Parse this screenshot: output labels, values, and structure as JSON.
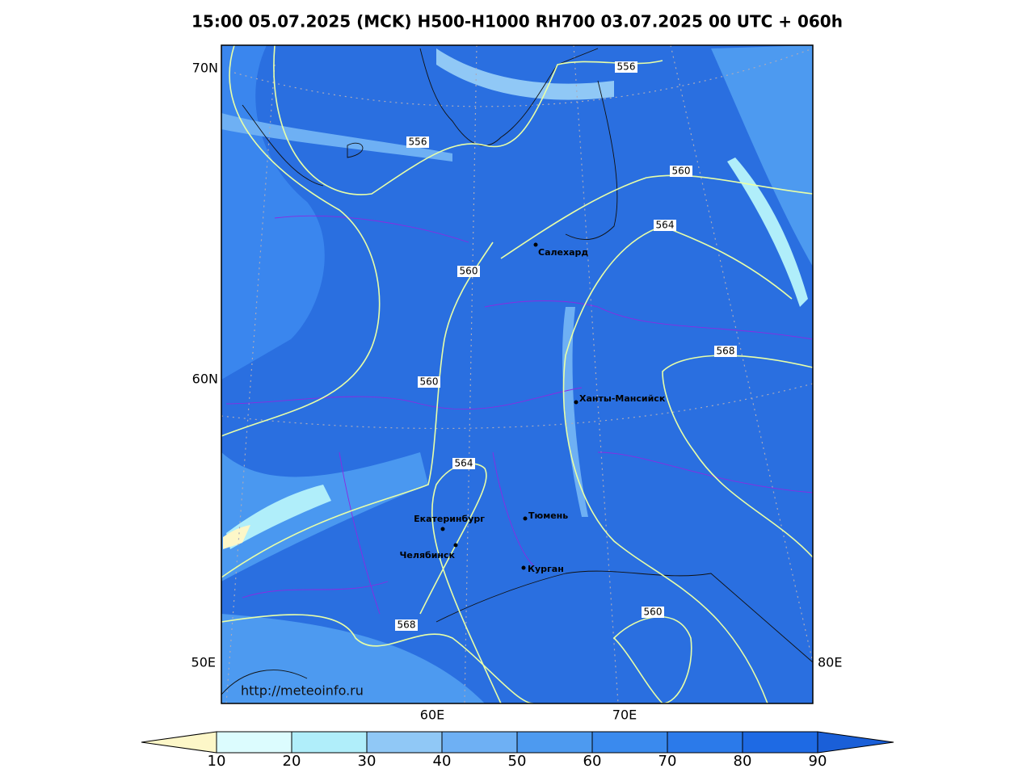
{
  "title": "15:00 05.07.2025 (MCK) H500-H1000 RH700 03.07.2025 00 UTC + 060h",
  "axis_labels": [
    "70N",
    "60N",
    "50E",
    "80E",
    "60E",
    "70E"
  ],
  "contour_labels": [
    556,
    556,
    560,
    564,
    560,
    568,
    560,
    564,
    560,
    568
  ],
  "cities": [
    "Салехард",
    "Ханты-Мансийск",
    "Тюмень",
    "Екатеринбург",
    "Челябинск",
    "Курган"
  ],
  "source": "http://meteoinfo.ru",
  "colorbar": {
    "ticks": [
      10,
      20,
      30,
      40,
      50,
      60,
      70,
      80,
      90
    ],
    "colors": [
      "#fdf7c8",
      "#dcfcfe",
      "#b0eefa",
      "#90c8f6",
      "#6eb0f4",
      "#4d9af0",
      "#3a8aee",
      "#2b7aea",
      "#1e6ae4",
      "#1a5fd8"
    ]
  }
}
